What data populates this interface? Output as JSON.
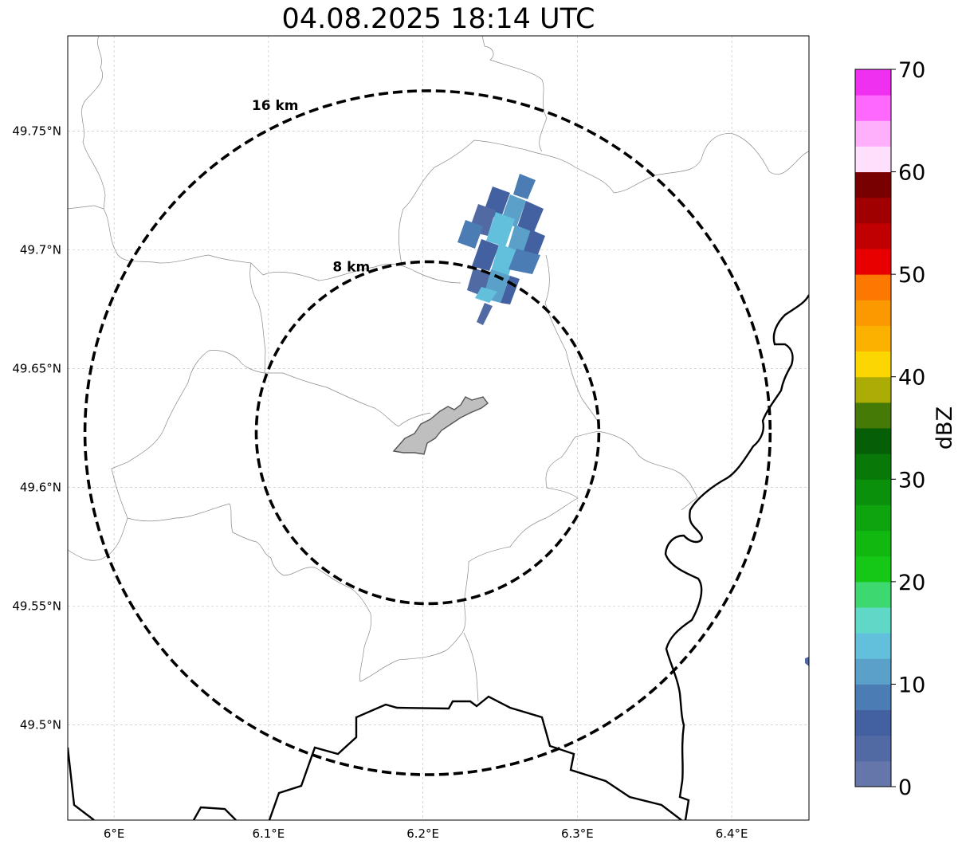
{
  "title": "04.08.2025 18:14 UTC",
  "map": {
    "lon_range": [
      5.97,
      6.45
    ],
    "lat_range": [
      49.46,
      49.79
    ],
    "x_ticks": [
      {
        "value": 6.0,
        "label": "6°E"
      },
      {
        "value": 6.1,
        "label": "6.1°E"
      },
      {
        "value": 6.2,
        "label": "6.2°E"
      },
      {
        "value": 6.3,
        "label": "6.3°E"
      },
      {
        "value": 6.4,
        "label": "6.4°E"
      }
    ],
    "y_ticks": [
      {
        "value": 49.5,
        "label": "49.5°N"
      },
      {
        "value": 49.55,
        "label": "49.55°N"
      },
      {
        "value": 49.6,
        "label": "49.6°N"
      },
      {
        "value": 49.65,
        "label": "49.65°N"
      },
      {
        "value": 49.7,
        "label": "49.7°N"
      },
      {
        "value": 49.75,
        "label": "49.75°N"
      }
    ],
    "grid": true,
    "radar_center": {
      "lon": 6.203,
      "lat": 49.623
    },
    "range_rings": [
      {
        "radius_km": 8,
        "label": "8 km"
      },
      {
        "radius_km": 16,
        "label": "16 km"
      }
    ]
  },
  "colorbar": {
    "title": "dBZ",
    "min": 0,
    "max": 70,
    "tick_labels": [
      "0",
      "10",
      "20",
      "30",
      "40",
      "50",
      "60",
      "70"
    ],
    "colors": [
      "#6577aa",
      "#526aa4",
      "#4360a0",
      "#4b7cb4",
      "#5aa0c8",
      "#62c0dc",
      "#5fd8c8",
      "#3dd870",
      "#15c815",
      "#10b810",
      "#0ea40e",
      "#0b900b",
      "#087808",
      "#065e06",
      "#467a06",
      "#acac06",
      "#fcd600",
      "#fcb000",
      "#fc9800",
      "#fc7800",
      "#e80000",
      "#c00000",
      "#a00000",
      "#780000",
      "#ffe0fc",
      "#ffb0fc",
      "#ff68fc",
      "#f030f0"
    ]
  }
}
